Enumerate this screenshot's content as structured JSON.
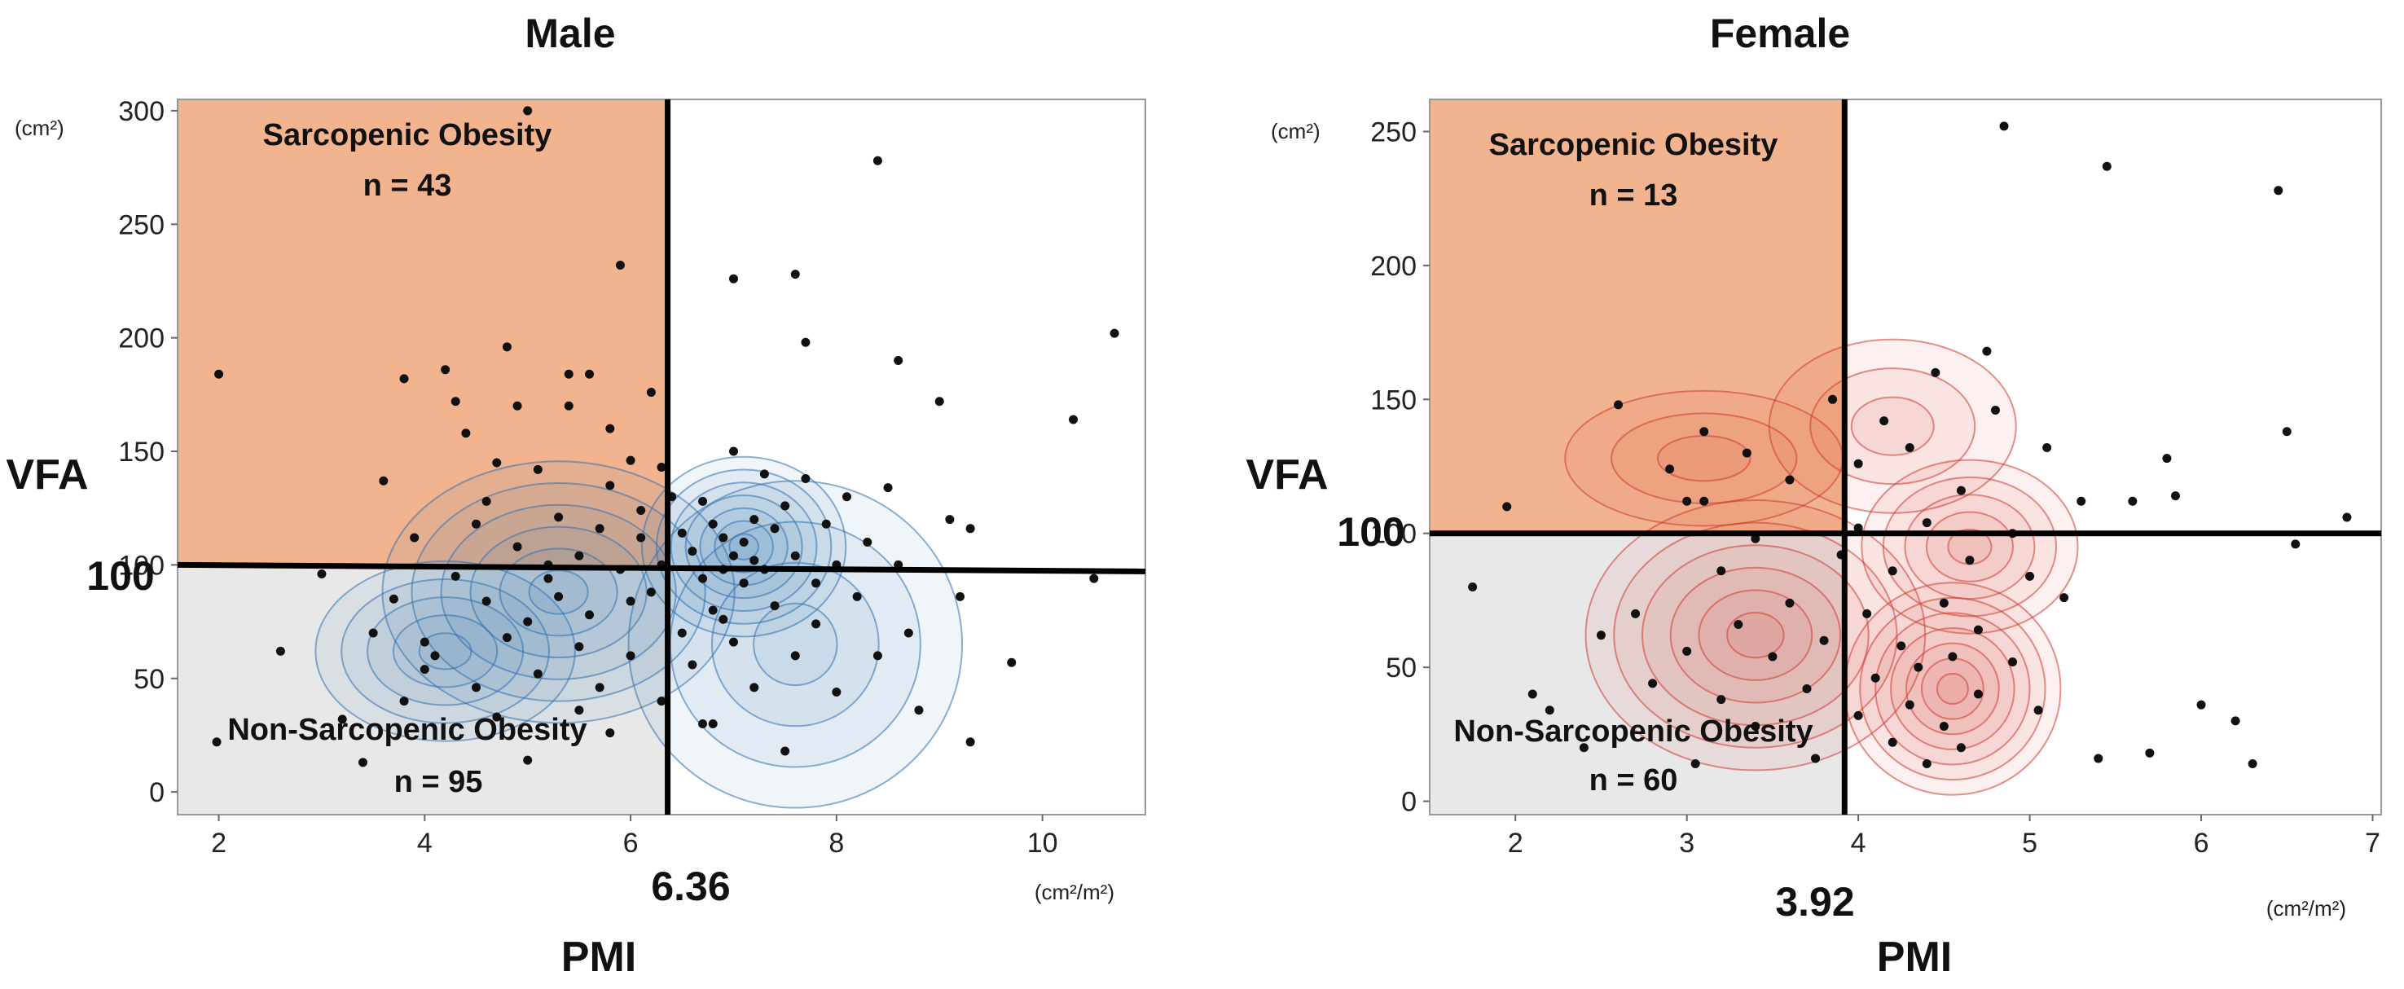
{
  "chart_data": [
    {
      "type": "scatter",
      "title": "Male",
      "xlabel": "PMI",
      "ylabel": "VFA",
      "x_unit": "(cm²/m²)",
      "y_unit": "(cm²)",
      "xlim": [
        1.6,
        11.0
      ],
      "ylim": [
        -10,
        305
      ],
      "x_ticks": [
        2,
        4,
        6,
        8,
        10
      ],
      "y_ticks": [
        0,
        50,
        100,
        150,
        200,
        250,
        300
      ],
      "x_threshold": 6.36,
      "x_threshold_label": "6.36",
      "y_threshold": 100,
      "y_threshold_label": "100",
      "density_color": "#2f6fb0",
      "quadrants": {
        "upper_left": {
          "title": "Sarcopenic Obesity",
          "count": "n = 43",
          "color": "#f2b48f"
        },
        "lower_left": {
          "title": "Non-Sarcopenic Obesity",
          "count": "n = 95",
          "color": "#e8e8e8"
        }
      },
      "density_centers": [
        {
          "x": 7.1,
          "y": 108,
          "sx": 0.55,
          "sy": 22,
          "levels": 7
        },
        {
          "x": 5.3,
          "y": 88,
          "sx": 0.95,
          "sy": 32,
          "levels": 6
        },
        {
          "x": 4.2,
          "y": 62,
          "sx": 0.7,
          "sy": 22,
          "levels": 5
        },
        {
          "x": 7.6,
          "y": 65,
          "sx": 0.9,
          "sy": 40,
          "levels": 4
        }
      ],
      "points": [
        [
          1.98,
          22
        ],
        [
          2.0,
          184
        ],
        [
          2.6,
          62
        ],
        [
          3.0,
          96
        ],
        [
          3.2,
          32
        ],
        [
          3.4,
          13
        ],
        [
          3.5,
          70
        ],
        [
          3.6,
          137
        ],
        [
          3.7,
          85
        ],
        [
          3.8,
          182
        ],
        [
          3.9,
          112
        ],
        [
          4.0,
          66
        ],
        [
          4.0,
          54
        ],
        [
          4.1,
          60
        ],
        [
          4.2,
          186
        ],
        [
          4.3,
          172
        ],
        [
          4.3,
          95
        ],
        [
          4.4,
          158
        ],
        [
          4.5,
          118
        ],
        [
          4.5,
          46
        ],
        [
          4.6,
          84
        ],
        [
          4.7,
          145
        ],
        [
          4.7,
          33
        ],
        [
          4.8,
          196
        ],
        [
          4.8,
          68
        ],
        [
          4.9,
          170
        ],
        [
          4.9,
          108
        ],
        [
          5.0,
          300
        ],
        [
          5.0,
          75
        ],
        [
          5.0,
          14
        ],
        [
          5.1,
          142
        ],
        [
          5.1,
          52
        ],
        [
          5.2,
          94
        ],
        [
          5.3,
          121
        ],
        [
          5.3,
          86
        ],
        [
          5.4,
          184
        ],
        [
          5.4,
          170
        ],
        [
          5.5,
          104
        ],
        [
          5.5,
          36
        ],
        [
          5.6,
          184
        ],
        [
          5.6,
          78
        ],
        [
          5.7,
          116
        ],
        [
          5.7,
          46
        ],
        [
          5.8,
          160
        ],
        [
          5.8,
          135
        ],
        [
          5.8,
          26
        ],
        [
          5.9,
          232
        ],
        [
          5.9,
          98
        ],
        [
          6.0,
          146
        ],
        [
          6.0,
          84
        ],
        [
          6.0,
          60
        ],
        [
          6.1,
          124
        ],
        [
          6.1,
          112
        ],
        [
          6.2,
          88
        ],
        [
          6.3,
          143
        ],
        [
          6.3,
          100
        ],
        [
          6.3,
          40
        ],
        [
          6.4,
          130
        ],
        [
          6.5,
          114
        ],
        [
          6.5,
          70
        ],
        [
          6.6,
          106
        ],
        [
          6.6,
          56
        ],
        [
          6.7,
          128
        ],
        [
          6.7,
          94
        ],
        [
          6.8,
          118
        ],
        [
          6.8,
          80
        ],
        [
          6.8,
          30
        ],
        [
          6.9,
          112
        ],
        [
          6.9,
          98
        ],
        [
          7.0,
          104
        ],
        [
          7.0,
          150
        ],
        [
          7.0,
          66
        ],
        [
          7.1,
          110
        ],
        [
          7.1,
          92
        ],
        [
          7.2,
          120
        ],
        [
          7.2,
          102
        ],
        [
          7.2,
          46
        ],
        [
          7.3,
          140
        ],
        [
          7.3,
          98
        ],
        [
          7.4,
          116
        ],
        [
          7.4,
          82
        ],
        [
          7.5,
          126
        ],
        [
          7.5,
          18
        ],
        [
          7.6,
          104
        ],
        [
          7.6,
          60
        ],
        [
          7.7,
          198
        ],
        [
          7.7,
          138
        ],
        [
          7.8,
          92
        ],
        [
          7.8,
          74
        ],
        [
          7.9,
          118
        ],
        [
          8.0,
          100
        ],
        [
          8.0,
          44
        ],
        [
          8.1,
          130
        ],
        [
          8.2,
          86
        ],
        [
          8.3,
          110
        ],
        [
          8.4,
          60
        ],
        [
          8.4,
          278
        ],
        [
          8.5,
          134
        ],
        [
          8.6,
          190
        ],
        [
          8.6,
          100
        ],
        [
          8.7,
          70
        ],
        [
          8.8,
          36
        ],
        [
          9.0,
          172
        ],
        [
          9.1,
          120
        ],
        [
          9.2,
          86
        ],
        [
          9.3,
          116
        ],
        [
          9.3,
          22
        ],
        [
          9.7,
          57
        ],
        [
          10.3,
          164
        ],
        [
          10.5,
          94
        ],
        [
          10.7,
          202
        ],
        [
          6.7,
          30
        ],
        [
          7.0,
          226
        ],
        [
          7.6,
          228
        ],
        [
          5.5,
          64
        ],
        [
          4.6,
          128
        ],
        [
          3.8,
          40
        ],
        [
          6.2,
          176
        ],
        [
          5.2,
          100
        ],
        [
          6.9,
          76
        ]
      ]
    },
    {
      "type": "scatter",
      "title": "Female",
      "xlabel": "PMI",
      "ylabel": "VFA",
      "x_unit": "(cm²/m²)",
      "y_unit": "(cm²)",
      "xlim": [
        1.5,
        7.05
      ],
      "ylim": [
        -5,
        262
      ],
      "x_ticks": [
        2,
        3,
        4,
        5,
        6,
        7
      ],
      "y_ticks": [
        0,
        50,
        100,
        150,
        200,
        250
      ],
      "x_threshold": 3.92,
      "x_threshold_label": "3.92",
      "y_threshold": 100,
      "y_threshold_label": "100",
      "density_color": "#d0392e",
      "quadrants": {
        "upper_left": {
          "title": "Sarcopenic Obesity",
          "count": "n = 13",
          "color": "#f2b48f"
        },
        "lower_left": {
          "title": "Non-Sarcopenic Obesity",
          "count": "n = 60",
          "color": "#e8e8e8"
        }
      },
      "density_centers": [
        {
          "x": 3.4,
          "y": 62,
          "sx": 0.55,
          "sy": 28,
          "levels": 6
        },
        {
          "x": 4.55,
          "y": 42,
          "sx": 0.35,
          "sy": 22,
          "levels": 7
        },
        {
          "x": 4.65,
          "y": 95,
          "sx": 0.35,
          "sy": 18,
          "levels": 5
        },
        {
          "x": 4.2,
          "y": 140,
          "sx": 0.4,
          "sy": 18,
          "levels": 3
        },
        {
          "x": 3.1,
          "y": 128,
          "sx": 0.45,
          "sy": 14,
          "levels": 3
        }
      ],
      "points": [
        [
          1.75,
          80
        ],
        [
          1.95,
          110
        ],
        [
          2.1,
          40
        ],
        [
          2.2,
          34
        ],
        [
          2.4,
          20
        ],
        [
          2.5,
          62
        ],
        [
          2.6,
          148
        ],
        [
          2.7,
          70
        ],
        [
          2.8,
          44
        ],
        [
          2.9,
          124
        ],
        [
          3.0,
          56
        ],
        [
          3.0,
          112
        ],
        [
          3.05,
          14
        ],
        [
          3.1,
          138
        ],
        [
          3.1,
          112
        ],
        [
          3.2,
          86
        ],
        [
          3.2,
          38
        ],
        [
          3.3,
          66
        ],
        [
          3.35,
          130
        ],
        [
          3.4,
          98
        ],
        [
          3.4,
          28
        ],
        [
          3.5,
          54
        ],
        [
          3.6,
          120
        ],
        [
          3.6,
          74
        ],
        [
          3.7,
          42
        ],
        [
          3.75,
          16
        ],
        [
          3.8,
          60
        ],
        [
          3.85,
          150
        ],
        [
          3.9,
          92
        ],
        [
          4.0,
          102
        ],
        [
          4.0,
          32
        ],
        [
          4.05,
          70
        ],
        [
          4.1,
          46
        ],
        [
          4.15,
          142
        ],
        [
          4.2,
          86
        ],
        [
          4.2,
          22
        ],
        [
          4.25,
          58
        ],
        [
          4.3,
          132
        ],
        [
          4.3,
          36
        ],
        [
          4.35,
          50
        ],
        [
          4.4,
          104
        ],
        [
          4.45,
          160
        ],
        [
          4.5,
          74
        ],
        [
          4.5,
          28
        ],
        [
          4.55,
          54
        ],
        [
          4.6,
          116
        ],
        [
          4.6,
          20
        ],
        [
          4.65,
          90
        ],
        [
          4.7,
          40
        ],
        [
          4.7,
          64
        ],
        [
          4.75,
          168
        ],
        [
          4.8,
          146
        ],
        [
          4.85,
          252
        ],
        [
          4.9,
          100
        ],
        [
          4.9,
          52
        ],
        [
          5.0,
          84
        ],
        [
          5.05,
          34
        ],
        [
          5.1,
          132
        ],
        [
          5.2,
          76
        ],
        [
          5.3,
          112
        ],
        [
          5.4,
          16
        ],
        [
          5.45,
          237
        ],
        [
          5.6,
          112
        ],
        [
          5.7,
          18
        ],
        [
          5.8,
          128
        ],
        [
          5.85,
          114
        ],
        [
          6.0,
          36
        ],
        [
          6.2,
          30
        ],
        [
          6.3,
          14
        ],
        [
          6.45,
          228
        ],
        [
          6.5,
          138
        ],
        [
          6.55,
          96
        ],
        [
          6.85,
          106
        ],
        [
          4.0,
          126
        ],
        [
          4.4,
          14
        ]
      ]
    }
  ]
}
